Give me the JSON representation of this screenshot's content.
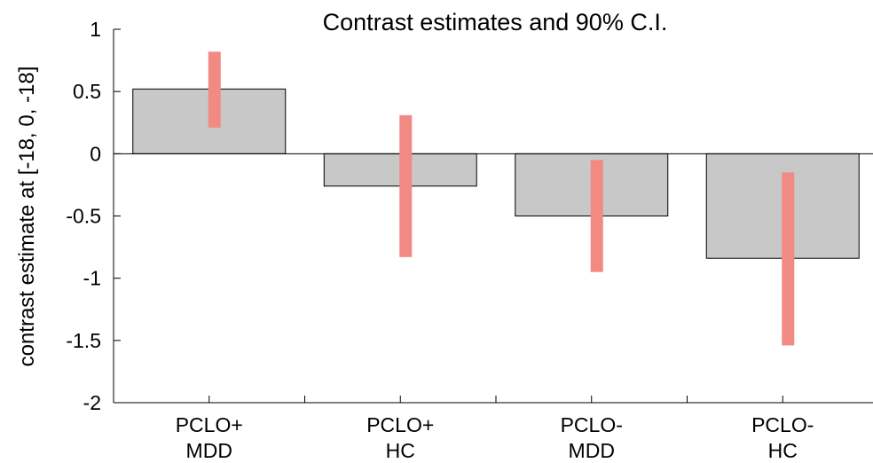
{
  "chart_data": {
    "type": "bar",
    "title": "Contrast estimates and 90% C.I.",
    "ylabel": "contrast estimate at [-18, 0, -18]",
    "xlabel": "",
    "ylim": [
      -2,
      1
    ],
    "yticks": [
      1,
      0.5,
      0,
      -0.5,
      -1,
      -1.5,
      -2
    ],
    "ytick_labels": [
      "1",
      "0.5",
      "0",
      "-0.5",
      "-1",
      "-1.5",
      "-2"
    ],
    "categories": [
      {
        "line1": "PCLO+",
        "line2": "MDD"
      },
      {
        "line1": "PCLO+",
        "line2": "HC"
      },
      {
        "line1": "PCLO-",
        "line2": "MDD"
      },
      {
        "line1": "PCLO-",
        "line2": "HC"
      }
    ],
    "values": [
      0.52,
      -0.26,
      -0.5,
      -0.84
    ],
    "ci_low": [
      0.21,
      -0.83,
      -0.95,
      -1.54
    ],
    "ci_high": [
      0.82,
      0.31,
      -0.05,
      -0.15
    ],
    "bar_color": "#c8c8c8",
    "ci_color": "#f28a84",
    "grid": false
  }
}
